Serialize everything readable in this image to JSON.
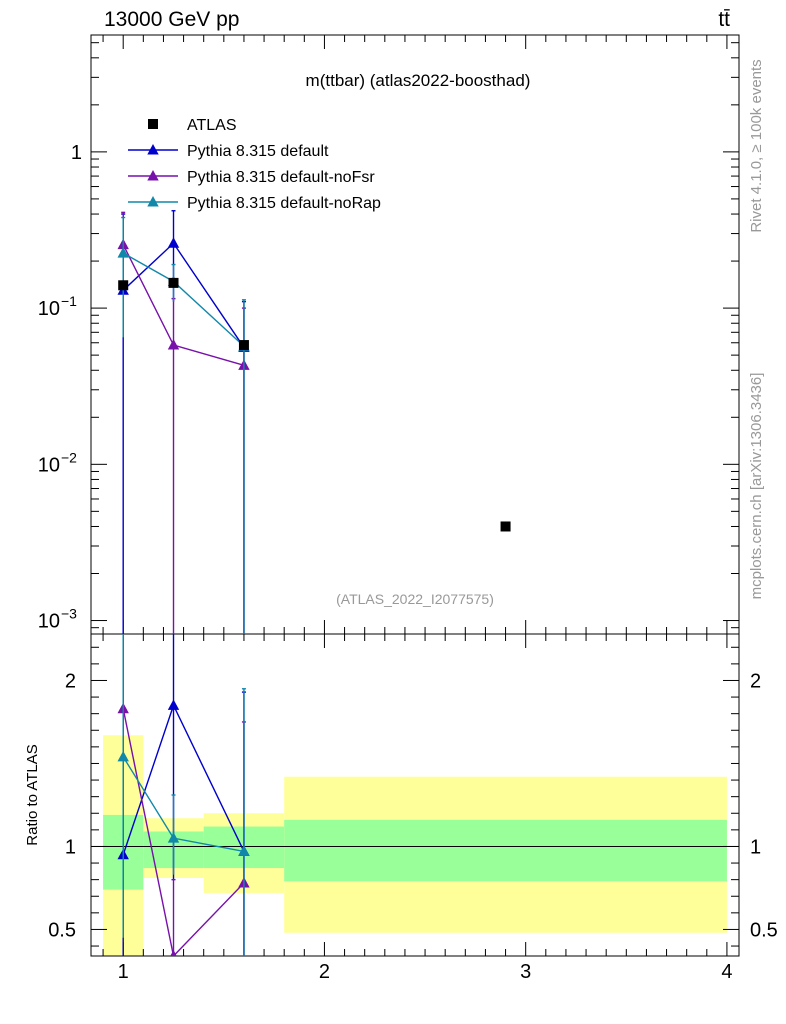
{
  "header": {
    "energy_label": "13000 GeV pp",
    "process_label": "tt̄"
  },
  "side_labels": {
    "rivet": "Rivet 4.1.0, ≥ 100k events",
    "mcplots": "mcplots.cern.ch [arXiv:1306.3436]"
  },
  "chart_data": [
    {
      "type": "scatter",
      "panel": "main",
      "title": "m(ttbar) (atlas2022-boosthad)",
      "watermark": "(ATLAS_2022_I2077575)",
      "yscale": "log",
      "xlim": [
        0.84,
        4.06
      ],
      "ylim": [
        0.00082,
        5.6
      ],
      "yticks": [
        {
          "value": 1,
          "label": "1"
        },
        {
          "value": 0.1,
          "label": "10",
          "exp": "−1"
        },
        {
          "value": 0.01,
          "label": "10",
          "exp": "−2"
        },
        {
          "value": 0.001,
          "label": "10",
          "exp": "−3"
        }
      ],
      "legend_position": "top-left",
      "data": {
        "name": "ATLAS",
        "color": "#000000",
        "points": [
          {
            "x": 1.0,
            "y": 0.14
          },
          {
            "x": 1.25,
            "y": 0.145
          },
          {
            "x": 1.6,
            "y": 0.058
          },
          {
            "x": 2.9,
            "y": 0.004
          }
        ]
      },
      "series": [
        {
          "name": "Pythia 8.315 default",
          "color": "#0000cc",
          "points": [
            {
              "x": 1.0,
              "y": 0.13,
              "ylo": 0.0005,
              "yhi": 0.4
            },
            {
              "x": 1.25,
              "y": 0.26,
              "ylo": 0.11,
              "yhi": 0.42
            },
            {
              "x": 1.6,
              "y": 0.056,
              "ylo": 0.0005,
              "yhi": 0.11
            }
          ]
        },
        {
          "name": "Pythia 8.315 default-noFsr",
          "color": "#7711aa",
          "points": [
            {
              "x": 1.0,
              "y": 0.255,
              "ylo": 0.07,
              "yhi": 0.41
            },
            {
              "x": 1.25,
              "y": 0.058,
              "ylo": 0.0005,
              "yhi": 0.115
            },
            {
              "x": 1.6,
              "y": 0.043,
              "ylo": 0.0005,
              "yhi": 0.1
            }
          ]
        },
        {
          "name": "Pythia 8.315 default-noRap",
          "color": "#1188aa",
          "points": [
            {
              "x": 1.0,
              "y": 0.225,
              "ylo": 0.065,
              "yhi": 0.38
            },
            {
              "x": 1.25,
              "y": 0.148,
              "ylo": 0.11,
              "yhi": 0.19
            },
            {
              "x": 1.6,
              "y": 0.057,
              "ylo": 0.0005,
              "yhi": 0.113
            }
          ]
        }
      ]
    },
    {
      "type": "line",
      "panel": "ratio",
      "ylabel": "Ratio to ATLAS",
      "ylim": [
        0.34,
        2.28
      ],
      "xlim": [
        0.84,
        4.06
      ],
      "xticks": [
        {
          "value": 1,
          "label": "1"
        },
        {
          "value": 2,
          "label": "2"
        },
        {
          "value": 3,
          "label": "3"
        },
        {
          "value": 4,
          "label": "4"
        }
      ],
      "yticks": [
        {
          "value": 0.5,
          "label": "0.5"
        },
        {
          "value": 1,
          "label": "1"
        },
        {
          "value": 2,
          "label": "2"
        }
      ],
      "bands": [
        {
          "x0": 0.9,
          "x1": 1.1,
          "inner": [
            0.74,
            1.19
          ],
          "outer": [
            0.3,
            1.67
          ]
        },
        {
          "x0": 1.1,
          "x1": 1.4,
          "inner": [
            0.87,
            1.09
          ],
          "outer": [
            0.81,
            1.17
          ]
        },
        {
          "x0": 1.4,
          "x1": 1.8,
          "inner": [
            0.87,
            1.12
          ],
          "outer": [
            0.72,
            1.2
          ]
        },
        {
          "x0": 1.8,
          "x1": 4.0,
          "inner": [
            0.79,
            1.16
          ],
          "outer": [
            0.48,
            1.42
          ]
        }
      ],
      "band_colors": {
        "inner": "#99ff99",
        "outer": "#ffff99"
      },
      "series": [
        {
          "name": "Pythia 8.315 default",
          "color": "#0000cc",
          "points": [
            {
              "x": 1.0,
              "y": 0.95,
              "ylo": 0.1,
              "yhi": 2.8
            },
            {
              "x": 1.25,
              "y": 1.85,
              "ylo": 0.8,
              "yhi": 2.9
            },
            {
              "x": 1.6,
              "y": 0.97,
              "ylo": 0.1,
              "yhi": 1.93
            }
          ]
        },
        {
          "name": "Pythia 8.315 default-noFsr",
          "color": "#7711aa",
          "points": [
            {
              "x": 1.0,
              "y": 1.83,
              "ylo": 0.5,
              "yhi": 2.9
            },
            {
              "x": 1.25,
              "y": 0.34,
              "ylo": 0.1,
              "yhi": 0.8
            },
            {
              "x": 1.6,
              "y": 0.78,
              "ylo": 0.1,
              "yhi": 1.75
            }
          ]
        },
        {
          "name": "Pythia 8.315 default-noRap",
          "color": "#1188aa",
          "points": [
            {
              "x": 1.0,
              "y": 1.54,
              "ylo": 0.45,
              "yhi": 2.6
            },
            {
              "x": 1.25,
              "y": 1.05,
              "ylo": 0.83,
              "yhi": 1.31
            },
            {
              "x": 1.6,
              "y": 0.97,
              "ylo": 0.1,
              "yhi": 1.95
            }
          ]
        }
      ]
    }
  ]
}
